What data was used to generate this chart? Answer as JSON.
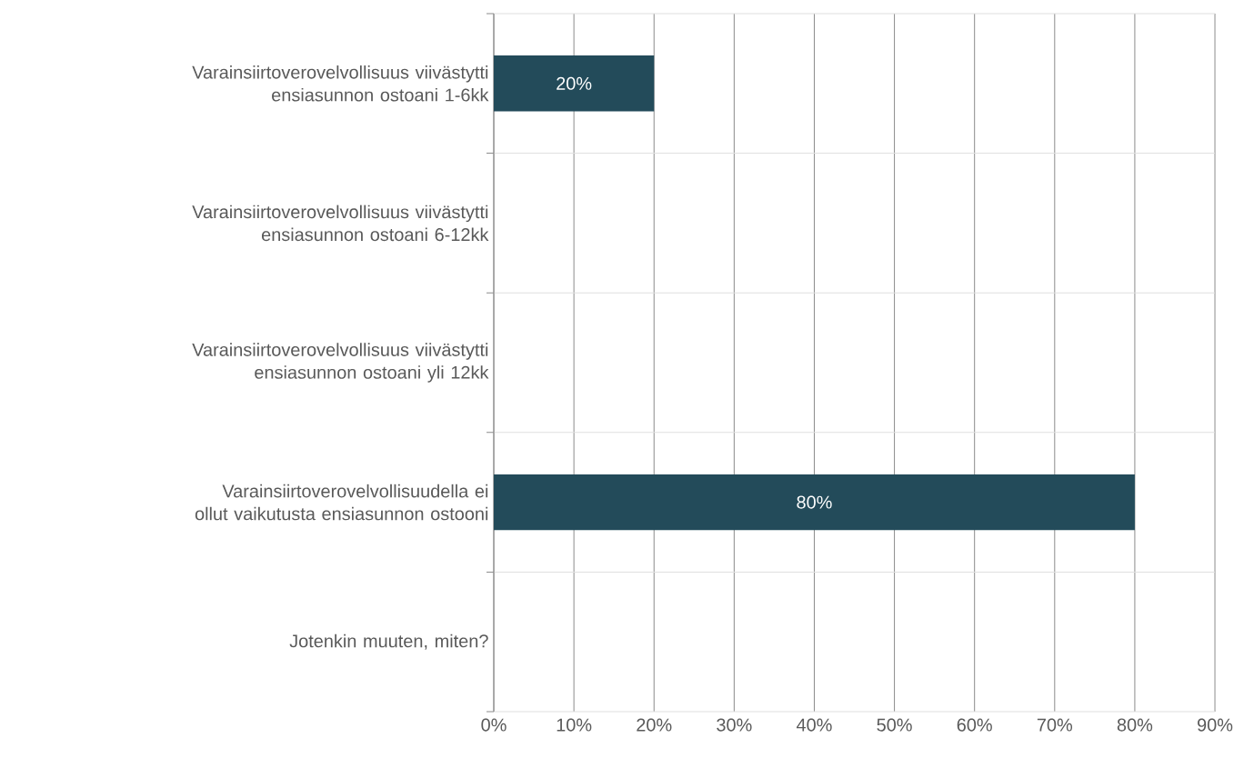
{
  "chart_data": {
    "type": "bar",
    "orientation": "horizontal",
    "categories": [
      "Varainsiirtoverovelvollisuus viivästytti ensiasunnon ostoani 1-6kk",
      "Varainsiirtoverovelvollisuus viivästytti ensiasunnon ostoani 6-12kk",
      "Varainsiirtoverovelvollisuus viivästytti ensiasunnon ostoani yli 12kk",
      "Varainsiirtoverovelvollisuudella ei ollut vaikutusta ensiasunnon ostooni",
      "Jotenkin muuten, miten?"
    ],
    "values": [
      20,
      0,
      0,
      80,
      0
    ],
    "value_labels": [
      "20%",
      null,
      null,
      "80%",
      null
    ],
    "color": "#234b5a",
    "xlim": [
      0,
      90
    ],
    "xticks": [
      {
        "value": 0,
        "label": "0%"
      },
      {
        "value": 10,
        "label": "10%"
      },
      {
        "value": 20,
        "label": "20%"
      },
      {
        "value": 30,
        "label": "30%"
      },
      {
        "value": 40,
        "label": "40%"
      },
      {
        "value": 50,
        "label": "50%"
      },
      {
        "value": 60,
        "label": "60%"
      },
      {
        "value": 70,
        "label": "70%"
      },
      {
        "value": 80,
        "label": "80%"
      },
      {
        "value": 90,
        "label": "90%"
      }
    ],
    "grid": true
  }
}
